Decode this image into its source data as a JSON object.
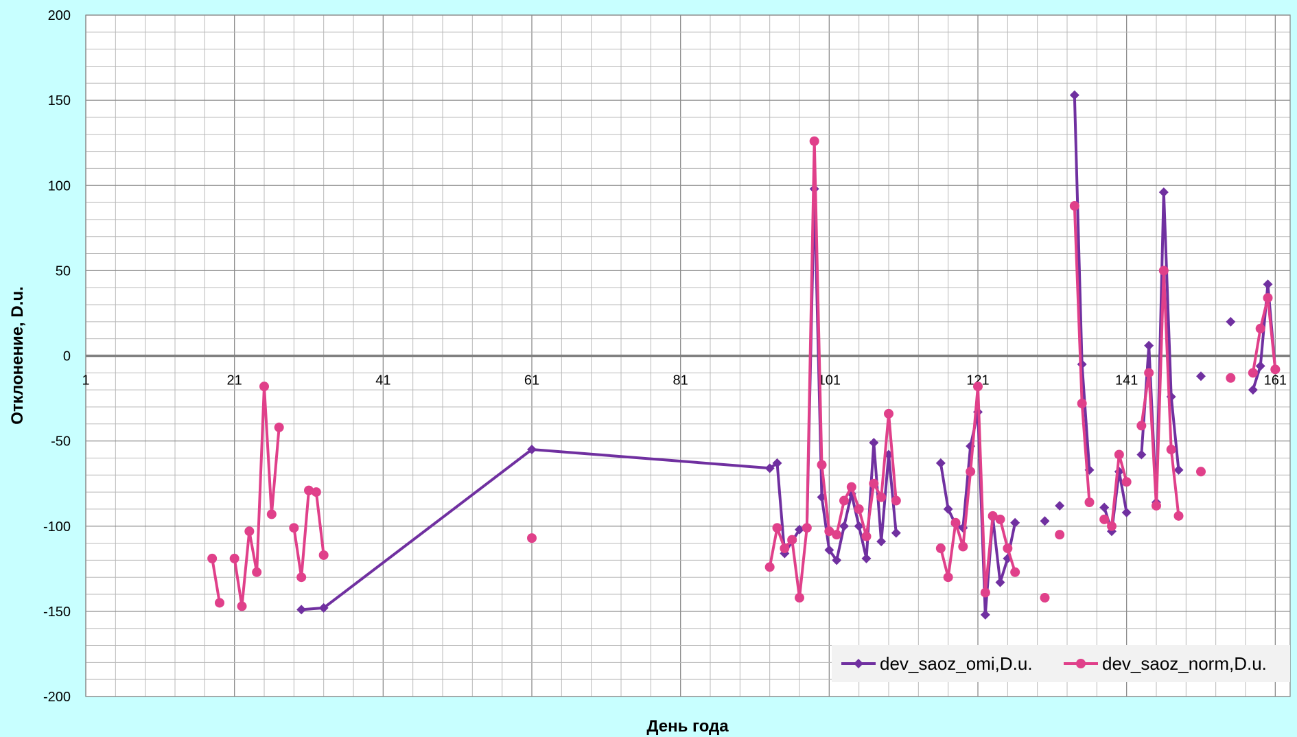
{
  "chart_data": {
    "type": "line",
    "title": "",
    "xlabel": "День года",
    "ylabel": "Отклонение, D.u.",
    "xlim": [
      1,
      163
    ],
    "ylim": [
      -200,
      200
    ],
    "x_ticks": [
      1,
      21,
      41,
      61,
      81,
      101,
      121,
      141,
      161
    ],
    "y_ticks": [
      200,
      150,
      100,
      50,
      0,
      -50,
      -100,
      -150,
      -200
    ],
    "grid": true,
    "legend_position": "bottom-right",
    "colors": {
      "background": "#c8ffff",
      "plot_area": "#ffffff",
      "grid": "#b8b8b8",
      "zero_line": "#808080"
    },
    "series": [
      {
        "name": "dev_saoz_omi,D.u.",
        "color": "#7030a0",
        "marker": "diamond",
        "points": [
          [
            30,
            -149
          ],
          [
            33,
            -148
          ],
          [
            61,
            -55
          ],
          [
            93,
            -66
          ],
          [
            94,
            -63
          ],
          [
            95,
            -116
          ],
          [
            96,
            -109
          ],
          [
            97,
            -102
          ],
          [
            98,
            -101
          ],
          [
            99,
            98
          ],
          [
            100,
            -83
          ],
          [
            101,
            -114
          ],
          [
            102,
            -120
          ],
          [
            103,
            -100
          ],
          [
            104,
            -81
          ],
          [
            105,
            -100
          ],
          [
            106,
            -119
          ],
          [
            107,
            -51
          ],
          [
            108,
            -109
          ],
          [
            109,
            -58
          ],
          [
            110,
            -104
          ],
          null,
          [
            116,
            -63
          ],
          [
            117,
            -90
          ],
          [
            118,
            -99
          ],
          [
            119,
            -101
          ],
          [
            120,
            -53
          ],
          [
            121,
            -33
          ],
          [
            122,
            -152
          ],
          [
            123,
            -95
          ],
          [
            124,
            -133
          ],
          [
            125,
            -119
          ],
          [
            126,
            -98
          ],
          null,
          [
            130,
            -97
          ],
          null,
          [
            132,
            -88
          ],
          null,
          [
            134,
            153
          ],
          [
            135,
            -5
          ],
          [
            136,
            -67
          ],
          null,
          [
            138,
            -89
          ],
          [
            139,
            -103
          ],
          [
            140,
            -68
          ],
          [
            141,
            -92
          ],
          null,
          [
            143,
            -58
          ],
          [
            144,
            6
          ],
          [
            145,
            -86
          ],
          [
            146,
            96
          ],
          [
            147,
            -24
          ],
          [
            148,
            -67
          ],
          null,
          [
            151,
            -12
          ],
          null,
          [
            155,
            20
          ],
          null,
          [
            158,
            -20
          ],
          [
            159,
            -6
          ],
          [
            160,
            42
          ],
          [
            161,
            -8
          ]
        ]
      },
      {
        "name": "dev_saoz_norm,D.u.",
        "color": "#e0408a",
        "marker": "circle",
        "points": [
          [
            18,
            -119
          ],
          [
            19,
            -145
          ],
          null,
          [
            21,
            -119
          ],
          [
            22,
            -147
          ],
          [
            23,
            -103
          ],
          [
            24,
            -127
          ],
          [
            25,
            -18
          ],
          [
            26,
            -93
          ],
          [
            27,
            -42
          ],
          null,
          [
            29,
            -101
          ],
          [
            30,
            -130
          ],
          [
            31,
            -79
          ],
          [
            32,
            -80
          ],
          [
            33,
            -117
          ],
          null,
          [
            61,
            -107
          ],
          null,
          [
            93,
            -124
          ],
          [
            94,
            -101
          ],
          [
            95,
            -113
          ],
          [
            96,
            -108
          ],
          [
            97,
            -142
          ],
          [
            98,
            -101
          ],
          [
            99,
            126
          ],
          [
            100,
            -64
          ],
          [
            101,
            -103
          ],
          [
            102,
            -105
          ],
          [
            103,
            -85
          ],
          [
            104,
            -77
          ],
          [
            105,
            -90
          ],
          [
            106,
            -106
          ],
          [
            107,
            -75
          ],
          [
            108,
            -83
          ],
          [
            109,
            -34
          ],
          [
            110,
            -85
          ],
          null,
          [
            116,
            -113
          ],
          [
            117,
            -130
          ],
          [
            118,
            -98
          ],
          [
            119,
            -112
          ],
          [
            120,
            -68
          ],
          [
            121,
            -18
          ],
          [
            122,
            -139
          ],
          [
            123,
            -94
          ],
          [
            124,
            -96
          ],
          [
            125,
            -113
          ],
          [
            126,
            -127
          ],
          null,
          [
            130,
            -142
          ],
          null,
          [
            132,
            -105
          ],
          null,
          [
            134,
            88
          ],
          [
            135,
            -28
          ],
          [
            136,
            -86
          ],
          null,
          [
            138,
            -96
          ],
          [
            139,
            -100
          ],
          [
            140,
            -58
          ],
          [
            141,
            -74
          ],
          null,
          [
            143,
            -41
          ],
          [
            144,
            -10
          ],
          [
            145,
            -88
          ],
          [
            146,
            50
          ],
          [
            147,
            -55
          ],
          [
            148,
            -94
          ],
          null,
          [
            151,
            -68
          ],
          null,
          [
            155,
            -13
          ],
          null,
          [
            158,
            -10
          ],
          [
            159,
            16
          ],
          [
            160,
            34
          ],
          [
            161,
            -8
          ]
        ]
      }
    ]
  }
}
